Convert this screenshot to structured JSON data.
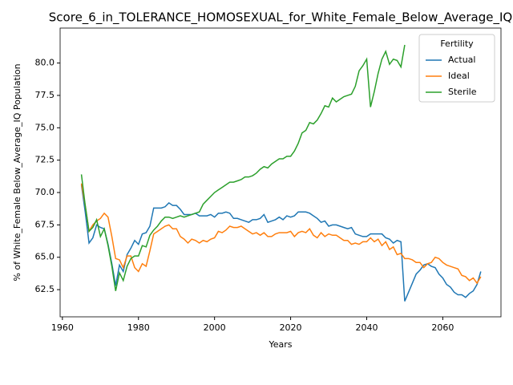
{
  "chart_data": {
    "type": "line",
    "title": "Score_6_in_TOLERANCE_HOMOSEXUAL_for_White_Female_Below_Average_IQ",
    "xlabel": "Years",
    "ylabel": "% of White_Female Below_Average_IQ Population",
    "legend_title": "Fertility",
    "legend": "upper right",
    "x": [
      1965,
      1966,
      1967,
      1968,
      1969,
      1970,
      1971,
      1972,
      1973,
      1974,
      1975,
      1976,
      1977,
      1978,
      1979,
      1980,
      1981,
      1982,
      1983,
      1984,
      1985,
      1986,
      1987,
      1988,
      1989,
      1990,
      1991,
      1992,
      1993,
      1994,
      1995,
      1996,
      1997,
      1998,
      1999,
      2000,
      2001,
      2002,
      2003,
      2004,
      2005,
      2006,
      2007,
      2008,
      2009,
      2010,
      2011,
      2012,
      2013,
      2014,
      2015,
      2016,
      2017,
      2018,
      2019,
      2020,
      2021,
      2022,
      2023,
      2024,
      2025,
      2026,
      2027,
      2028,
      2029,
      2030,
      2031,
      2032,
      2033,
      2034,
      2035,
      2036,
      2037,
      2038,
      2039,
      2040,
      2041,
      2042,
      2043,
      2044,
      2045,
      2046,
      2047,
      2048,
      2049,
      2050,
      2051,
      2052,
      2053,
      2054,
      2055,
      2056,
      2057,
      2058,
      2059,
      2060,
      2061,
      2062,
      2063,
      2064,
      2065,
      2066,
      2067,
      2068,
      2069,
      2070
    ],
    "series": [
      {
        "name": "Actual",
        "color": "#1f77b4",
        "values": [
          70.6,
          68.5,
          66.1,
          66.5,
          67.5,
          67.3,
          67.2,
          66.0,
          64.5,
          62.8,
          64.4,
          63.9,
          65.2,
          65.7,
          66.3,
          66.0,
          66.8,
          66.9,
          67.4,
          68.8,
          68.8,
          68.8,
          68.9,
          69.2,
          69.0,
          69.0,
          68.7,
          68.3,
          68.3,
          68.3,
          68.4,
          68.2,
          68.2,
          68.2,
          68.3,
          68.1,
          68.4,
          68.4,
          68.5,
          68.4,
          68.0,
          68.0,
          67.9,
          67.8,
          67.7,
          67.9,
          67.9,
          68.0,
          68.3,
          67.7,
          67.8,
          67.9,
          68.1,
          67.9,
          68.2,
          68.1,
          68.2,
          68.5,
          68.5,
          68.5,
          68.4,
          68.2,
          68.0,
          67.7,
          67.8,
          67.4,
          67.5,
          67.5,
          67.4,
          67.3,
          67.2,
          67.3,
          66.8,
          66.7,
          66.6,
          66.6,
          66.8,
          66.8,
          66.8,
          66.8,
          66.5,
          66.4,
          66.1,
          66.3,
          66.2,
          61.6,
          62.3,
          63.0,
          63.7,
          64.0,
          64.4,
          64.5,
          64.3,
          64.2,
          63.7,
          63.4,
          62.9,
          62.7,
          62.3,
          62.1,
          62.1,
          61.9,
          62.2,
          62.4,
          62.9,
          63.9
        ]
      },
      {
        "name": "Ideal",
        "color": "#ff7f0e",
        "values": [
          70.7,
          69.0,
          67.0,
          67.5,
          67.8,
          68.0,
          68.4,
          68.1,
          66.6,
          64.9,
          64.8,
          64.2,
          65.1,
          65.1,
          64.2,
          63.9,
          64.5,
          64.3,
          65.5,
          66.8,
          67.0,
          67.2,
          67.4,
          67.5,
          67.2,
          67.2,
          66.6,
          66.4,
          66.1,
          66.4,
          66.3,
          66.1,
          66.3,
          66.2,
          66.4,
          66.5,
          67.0,
          66.9,
          67.1,
          67.4,
          67.3,
          67.3,
          67.4,
          67.2,
          67.0,
          66.8,
          66.9,
          66.7,
          66.9,
          66.6,
          66.6,
          66.8,
          66.9,
          66.9,
          66.9,
          67.0,
          66.6,
          66.9,
          67.0,
          66.9,
          67.2,
          66.7,
          66.5,
          66.9,
          66.6,
          66.8,
          66.7,
          66.7,
          66.5,
          66.3,
          66.3,
          66.0,
          66.1,
          66.0,
          66.2,
          66.2,
          66.5,
          66.2,
          66.4,
          65.9,
          66.2,
          65.6,
          65.8,
          65.2,
          65.3,
          64.9,
          64.9,
          64.8,
          64.6,
          64.6,
          64.2,
          64.5,
          64.6,
          65.0,
          64.9,
          64.6,
          64.4,
          64.3,
          64.2,
          64.1,
          63.6,
          63.5,
          63.2,
          63.4,
          63.0,
          63.5
        ]
      },
      {
        "name": "Sterile",
        "color": "#2ca02c",
        "values": [
          71.4,
          69.0,
          67.0,
          67.3,
          67.9,
          66.6,
          67.2,
          65.9,
          64.3,
          62.4,
          63.8,
          63.2,
          64.3,
          64.9,
          65.1,
          65.1,
          65.9,
          65.8,
          66.7,
          67.1,
          67.4,
          67.8,
          68.1,
          68.1,
          68.0,
          68.1,
          68.2,
          68.1,
          68.2,
          68.3,
          68.4,
          68.5,
          69.1,
          69.4,
          69.7,
          70.0,
          70.2,
          70.4,
          70.6,
          70.8,
          70.8,
          70.9,
          71.0,
          71.2,
          71.2,
          71.3,
          71.5,
          71.8,
          72.0,
          71.9,
          72.2,
          72.4,
          72.6,
          72.6,
          72.8,
          72.8,
          73.2,
          73.8,
          74.6,
          74.8,
          75.4,
          75.3,
          75.6,
          76.1,
          76.7,
          76.6,
          77.3,
          77.0,
          77.2,
          77.4,
          77.5,
          77.6,
          78.2,
          79.4,
          79.8,
          80.3,
          76.6,
          77.8,
          79.2,
          80.3,
          80.9,
          79.9,
          80.3,
          80.2,
          79.7,
          81.4,
          null,
          null,
          null,
          null,
          null,
          null,
          null,
          null,
          null,
          null,
          null,
          null,
          null,
          null,
          null,
          null,
          null,
          null,
          null,
          null
        ]
      }
    ],
    "xlim": [
      1959.4,
      2075.3
    ],
    "ylim": [
      60.4,
      82.7
    ],
    "xticks": [
      1960,
      1980,
      2000,
      2020,
      2040,
      2060
    ],
    "yticks": [
      62.5,
      {
        "value": 65,
        "label": "65.0"
      },
      67.5,
      {
        "value": 70,
        "label": "70.0"
      },
      72.5,
      {
        "value": 75,
        "label": "75.0"
      },
      77.5,
      {
        "value": 80,
        "label": "80.0"
      }
    ]
  }
}
